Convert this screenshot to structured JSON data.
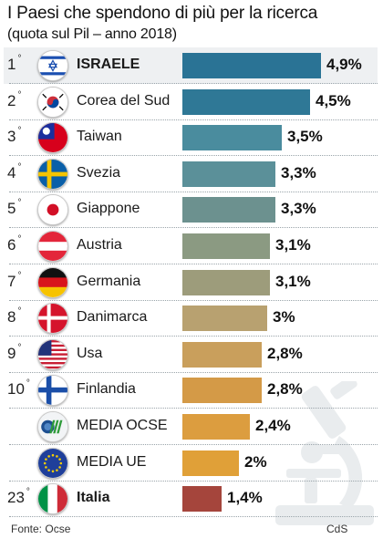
{
  "title": "I Paesi che spendono di più per la ricerca",
  "subtitle": "(quota sul Pil – anno 2018)",
  "source": "Fonte: Ocse",
  "credit": "CdS",
  "colors": {
    "bar_dark_teal": "#2a7395",
    "bar_teal": "#4a8c9e",
    "bar_sage": "#8b9a82",
    "bar_olive": "#b8a170",
    "bar_gold": "#d49a47",
    "bar_orange": "#e0a038",
    "bar_red": "#a5453c"
  },
  "chart_data": {
    "type": "bar",
    "orientation": "horizontal",
    "title": "I Paesi che spendono di più per la ricerca",
    "subtitle": "(quota sul Pil – anno 2018)",
    "unit": "%",
    "xlim": [
      0,
      5
    ],
    "rows": [
      {
        "rank": "1",
        "name": "ISRAELE",
        "flag": "israel-flag-icon",
        "value": 4.9,
        "label": "4,9%",
        "color": "#2a7395",
        "bold": true,
        "highlight": true
      },
      {
        "rank": "2",
        "name": "Corea del Sud",
        "flag": "south-korea-flag-icon",
        "value": 4.5,
        "label": "4,5%",
        "color": "#2f7896"
      },
      {
        "rank": "3",
        "name": "Taiwan",
        "flag": "taiwan-flag-icon",
        "value": 3.5,
        "label": "3,5%",
        "color": "#4a8c9e"
      },
      {
        "rank": "4",
        "name": "Svezia",
        "flag": "sweden-flag-icon",
        "value": 3.3,
        "label": "3,3%",
        "color": "#5b9099"
      },
      {
        "rank": "5",
        "name": "Giappone",
        "flag": "japan-flag-icon",
        "value": 3.3,
        "label": "3,3%",
        "color": "#6c918f"
      },
      {
        "rank": "6",
        "name": "Austria",
        "flag": "austria-flag-icon",
        "value": 3.1,
        "label": "3,1%",
        "color": "#8b9a82"
      },
      {
        "rank": "7",
        "name": "Germania",
        "flag": "germany-flag-icon",
        "value": 3.1,
        "label": "3,1%",
        "color": "#9d9c7b"
      },
      {
        "rank": "8",
        "name": "Danimarca",
        "flag": "denmark-flag-icon",
        "value": 3.0,
        "label": "3%",
        "color": "#b8a170"
      },
      {
        "rank": "9",
        "name": "Usa",
        "flag": "usa-flag-icon",
        "value": 2.8,
        "label": "2,8%",
        "color": "#c99f5c"
      },
      {
        "rank": "10",
        "name": "Finlandia",
        "flag": "finland-flag-icon",
        "value": 2.8,
        "label": "2,8%",
        "color": "#d49a47"
      },
      {
        "rank": "",
        "name": "MEDIA OCSE",
        "flag": "oecd-logo-icon",
        "value": 2.4,
        "label": "2,4%",
        "color": "#dc9d3f"
      },
      {
        "rank": "",
        "name": "MEDIA UE",
        "flag": "eu-flag-icon",
        "value": 2.0,
        "label": "2%",
        "color": "#e0a038"
      },
      {
        "rank": "23",
        "name": "Italia",
        "flag": "italy-flag-icon",
        "value": 1.4,
        "label": "1,4%",
        "color": "#a5453c",
        "bold": true
      }
    ]
  }
}
